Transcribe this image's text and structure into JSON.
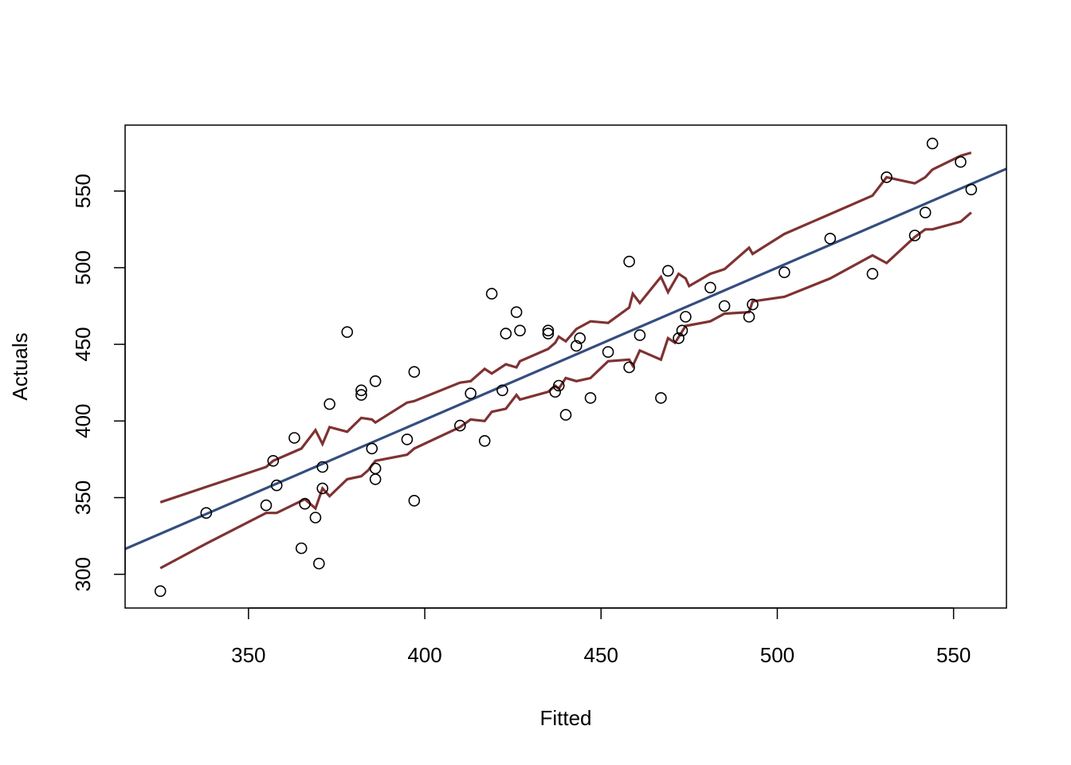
{
  "chart_data": {
    "type": "scatter",
    "title": "",
    "xlabel": "Fitted",
    "ylabel": "Actuals",
    "xlim": [
      315,
      565
    ],
    "ylim": [
      278,
      593
    ],
    "x_ticks": [
      350,
      400,
      450,
      500,
      550
    ],
    "y_ticks": [
      300,
      350,
      400,
      450,
      500,
      550
    ],
    "grid": false,
    "legend": "none",
    "colors": {
      "points": "#000000",
      "fit_line": "#344e7f",
      "interval_lines": "#7f3232"
    },
    "points": [
      {
        "x": 325,
        "y": 289
      },
      {
        "x": 338,
        "y": 340
      },
      {
        "x": 355,
        "y": 345
      },
      {
        "x": 357,
        "y": 374
      },
      {
        "x": 358,
        "y": 358
      },
      {
        "x": 363,
        "y": 389
      },
      {
        "x": 365,
        "y": 317
      },
      {
        "x": 366,
        "y": 346
      },
      {
        "x": 369,
        "y": 337
      },
      {
        "x": 370,
        "y": 307
      },
      {
        "x": 371,
        "y": 356
      },
      {
        "x": 371,
        "y": 370
      },
      {
        "x": 373,
        "y": 411
      },
      {
        "x": 378,
        "y": 458
      },
      {
        "x": 382,
        "y": 417
      },
      {
        "x": 382,
        "y": 420
      },
      {
        "x": 385,
        "y": 382
      },
      {
        "x": 386,
        "y": 426
      },
      {
        "x": 386,
        "y": 362
      },
      {
        "x": 386,
        "y": 369
      },
      {
        "x": 395,
        "y": 388
      },
      {
        "x": 397,
        "y": 432
      },
      {
        "x": 397,
        "y": 348
      },
      {
        "x": 410,
        "y": 397
      },
      {
        "x": 413,
        "y": 418
      },
      {
        "x": 417,
        "y": 387
      },
      {
        "x": 419,
        "y": 483
      },
      {
        "x": 422,
        "y": 420
      },
      {
        "x": 423,
        "y": 457
      },
      {
        "x": 426,
        "y": 471
      },
      {
        "x": 427,
        "y": 459
      },
      {
        "x": 435,
        "y": 459
      },
      {
        "x": 435,
        "y": 457
      },
      {
        "x": 437,
        "y": 419
      },
      {
        "x": 438,
        "y": 423
      },
      {
        "x": 440,
        "y": 404
      },
      {
        "x": 443,
        "y": 449
      },
      {
        "x": 444,
        "y": 454
      },
      {
        "x": 447,
        "y": 415
      },
      {
        "x": 452,
        "y": 445
      },
      {
        "x": 458,
        "y": 435
      },
      {
        "x": 458,
        "y": 504
      },
      {
        "x": 461,
        "y": 456
      },
      {
        "x": 467,
        "y": 415
      },
      {
        "x": 469,
        "y": 498
      },
      {
        "x": 472,
        "y": 454
      },
      {
        "x": 473,
        "y": 459
      },
      {
        "x": 474,
        "y": 468
      },
      {
        "x": 481,
        "y": 487
      },
      {
        "x": 485,
        "y": 475
      },
      {
        "x": 492,
        "y": 468
      },
      {
        "x": 493,
        "y": 476
      },
      {
        "x": 502,
        "y": 497
      },
      {
        "x": 515,
        "y": 519
      },
      {
        "x": 527,
        "y": 496
      },
      {
        "x": 531,
        "y": 559
      },
      {
        "x": 539,
        "y": 521
      },
      {
        "x": 542,
        "y": 536
      },
      {
        "x": 544,
        "y": 581
      },
      {
        "x": 552,
        "y": 569
      },
      {
        "x": 555,
        "y": 551
      }
    ],
    "fit_line": [
      {
        "x": 315,
        "y": 316.5
      },
      {
        "x": 565,
        "y": 564.5
      }
    ],
    "upper_band": [
      {
        "x": 325,
        "y": 347
      },
      {
        "x": 338,
        "y": 357
      },
      {
        "x": 355,
        "y": 370
      },
      {
        "x": 357,
        "y": 374
      },
      {
        "x": 365,
        "y": 382
      },
      {
        "x": 369,
        "y": 394
      },
      {
        "x": 371,
        "y": 385
      },
      {
        "x": 373,
        "y": 396
      },
      {
        "x": 378,
        "y": 393
      },
      {
        "x": 382,
        "y": 402
      },
      {
        "x": 385,
        "y": 401
      },
      {
        "x": 386,
        "y": 399
      },
      {
        "x": 395,
        "y": 412
      },
      {
        "x": 397,
        "y": 413
      },
      {
        "x": 410,
        "y": 425
      },
      {
        "x": 413,
        "y": 426
      },
      {
        "x": 417,
        "y": 434
      },
      {
        "x": 419,
        "y": 431
      },
      {
        "x": 423,
        "y": 437
      },
      {
        "x": 426,
        "y": 435
      },
      {
        "x": 427,
        "y": 439
      },
      {
        "x": 435,
        "y": 447
      },
      {
        "x": 437,
        "y": 451
      },
      {
        "x": 438,
        "y": 455
      },
      {
        "x": 440,
        "y": 452
      },
      {
        "x": 443,
        "y": 460
      },
      {
        "x": 447,
        "y": 465
      },
      {
        "x": 452,
        "y": 464
      },
      {
        "x": 458,
        "y": 474
      },
      {
        "x": 459,
        "y": 483
      },
      {
        "x": 461,
        "y": 477
      },
      {
        "x": 467,
        "y": 494
      },
      {
        "x": 469,
        "y": 484
      },
      {
        "x": 472,
        "y": 496
      },
      {
        "x": 474,
        "y": 493
      },
      {
        "x": 475,
        "y": 488
      },
      {
        "x": 481,
        "y": 496
      },
      {
        "x": 485,
        "y": 499
      },
      {
        "x": 492,
        "y": 513
      },
      {
        "x": 493,
        "y": 509
      },
      {
        "x": 502,
        "y": 522
      },
      {
        "x": 515,
        "y": 535
      },
      {
        "x": 527,
        "y": 547
      },
      {
        "x": 531,
        "y": 559
      },
      {
        "x": 539,
        "y": 555
      },
      {
        "x": 542,
        "y": 559
      },
      {
        "x": 544,
        "y": 564
      },
      {
        "x": 552,
        "y": 573
      },
      {
        "x": 555,
        "y": 575
      }
    ],
    "lower_band": [
      {
        "x": 325,
        "y": 304
      },
      {
        "x": 338,
        "y": 320
      },
      {
        "x": 355,
        "y": 340
      },
      {
        "x": 358,
        "y": 340
      },
      {
        "x": 366,
        "y": 349
      },
      {
        "x": 369,
        "y": 343
      },
      {
        "x": 371,
        "y": 356
      },
      {
        "x": 373,
        "y": 351
      },
      {
        "x": 378,
        "y": 362
      },
      {
        "x": 382,
        "y": 364
      },
      {
        "x": 384,
        "y": 368
      },
      {
        "x": 386,
        "y": 374
      },
      {
        "x": 395,
        "y": 378
      },
      {
        "x": 397,
        "y": 382
      },
      {
        "x": 410,
        "y": 396
      },
      {
        "x": 413,
        "y": 401
      },
      {
        "x": 417,
        "y": 400
      },
      {
        "x": 419,
        "y": 406
      },
      {
        "x": 423,
        "y": 408
      },
      {
        "x": 426,
        "y": 417
      },
      {
        "x": 427,
        "y": 414
      },
      {
        "x": 435,
        "y": 419
      },
      {
        "x": 437,
        "y": 423
      },
      {
        "x": 438,
        "y": 421
      },
      {
        "x": 440,
        "y": 428
      },
      {
        "x": 443,
        "y": 426
      },
      {
        "x": 447,
        "y": 428
      },
      {
        "x": 452,
        "y": 439
      },
      {
        "x": 458,
        "y": 440
      },
      {
        "x": 459,
        "y": 436
      },
      {
        "x": 461,
        "y": 446
      },
      {
        "x": 467,
        "y": 440
      },
      {
        "x": 469,
        "y": 454
      },
      {
        "x": 471,
        "y": 451
      },
      {
        "x": 474,
        "y": 462
      },
      {
        "x": 481,
        "y": 465
      },
      {
        "x": 485,
        "y": 470
      },
      {
        "x": 492,
        "y": 471
      },
      {
        "x": 493,
        "y": 478
      },
      {
        "x": 502,
        "y": 481
      },
      {
        "x": 515,
        "y": 493
      },
      {
        "x": 527,
        "y": 508
      },
      {
        "x": 531,
        "y": 503
      },
      {
        "x": 539,
        "y": 520
      },
      {
        "x": 542,
        "y": 525
      },
      {
        "x": 544,
        "y": 525
      },
      {
        "x": 552,
        "y": 530
      },
      {
        "x": 555,
        "y": 536
      }
    ]
  }
}
